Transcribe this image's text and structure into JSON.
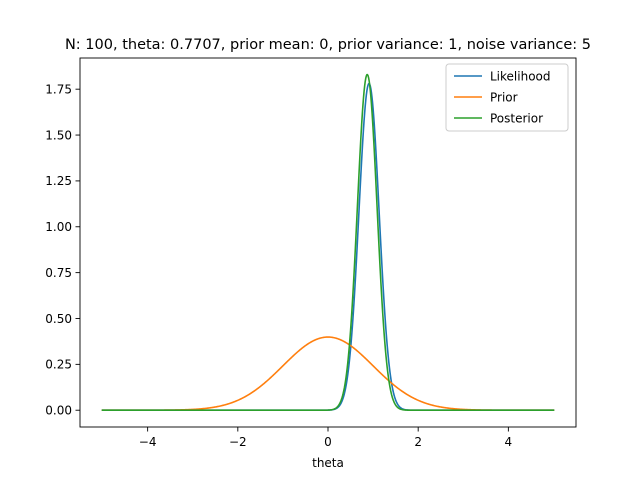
{
  "chart_data": {
    "type": "line",
    "title": "N: 100, theta: 0.7707, prior mean: 0, prior variance: 1, noise variance: 5",
    "xlabel": "theta",
    "ylabel": "",
    "xlim": [
      -5.5,
      5.5
    ],
    "ylim": [
      -0.0915,
      1.92
    ],
    "x_ticks": [
      -4,
      -2,
      0,
      2,
      4
    ],
    "x_tick_labels": [
      "−4",
      "−2",
      "0",
      "2",
      "4"
    ],
    "y_ticks": [
      0.0,
      0.25,
      0.5,
      0.75,
      1.0,
      1.25,
      1.5,
      1.75
    ],
    "y_tick_labels": [
      "0.00",
      "0.25",
      "0.50",
      "0.75",
      "1.00",
      "1.25",
      "1.50",
      "1.75"
    ],
    "grid": false,
    "legend_position": "top-right",
    "x_range": [
      -5,
      5
    ],
    "series": [
      {
        "name": "Likelihood",
        "color": "#1f77b4",
        "distribution": "normal",
        "mean": 0.91,
        "std": 0.224
      },
      {
        "name": "Prior",
        "color": "#ff7f0e",
        "distribution": "normal",
        "mean": 0,
        "std": 1
      },
      {
        "name": "Posterior",
        "color": "#2ca02c",
        "distribution": "normal",
        "mean": 0.87,
        "std": 0.218
      }
    ]
  }
}
